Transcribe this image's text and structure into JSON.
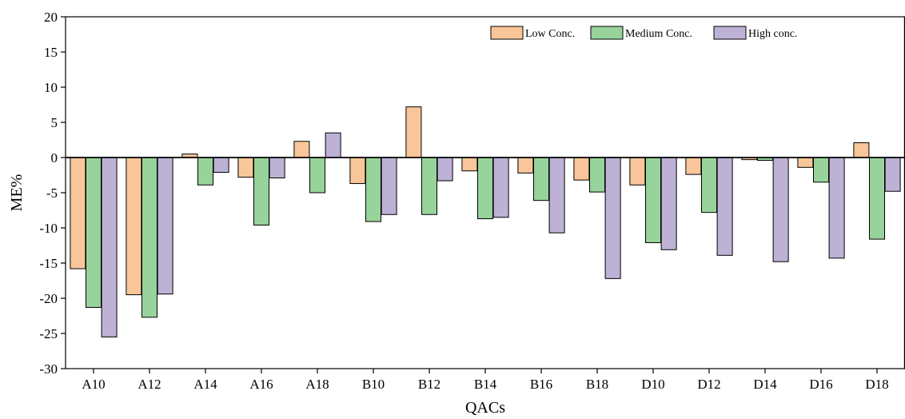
{
  "chart_data": {
    "type": "bar",
    "title": "",
    "xlabel": "QACs",
    "ylabel": "ME%",
    "ylim": [
      -30,
      20
    ],
    "yticks": [
      20,
      15,
      10,
      5,
      0,
      -5,
      -10,
      -15,
      -20,
      -25,
      -30
    ],
    "grid": false,
    "legend_position": "top-right",
    "categories": [
      "A10",
      "A12",
      "A14",
      "A16",
      "A18",
      "B10",
      "B12",
      "B14",
      "B16",
      "B18",
      "D10",
      "D12",
      "D14",
      "D16",
      "D18"
    ],
    "series": [
      {
        "name": "Low Conc.",
        "color": "#F9C699",
        "values": [
          -15.8,
          -19.5,
          0.5,
          -2.8,
          2.3,
          -3.7,
          7.2,
          -1.9,
          -2.2,
          -3.2,
          -3.9,
          -2.4,
          -0.3,
          -1.4,
          2.1
        ]
      },
      {
        "name": "Medium Conc.",
        "color": "#97D39A",
        "values": [
          -21.3,
          -22.7,
          -3.9,
          -9.6,
          -5.0,
          -9.1,
          -8.1,
          -8.7,
          -6.1,
          -4.9,
          -12.1,
          -7.8,
          -0.4,
          -3.5,
          -11.6
        ]
      },
      {
        "name": "High conc.",
        "color": "#BDB1D6",
        "values": [
          -25.5,
          -19.4,
          -2.1,
          -2.9,
          3.5,
          -8.1,
          -3.3,
          -8.5,
          -10.7,
          -17.2,
          -13.1,
          -13.9,
          -14.8,
          -14.3,
          -4.8
        ]
      }
    ]
  }
}
